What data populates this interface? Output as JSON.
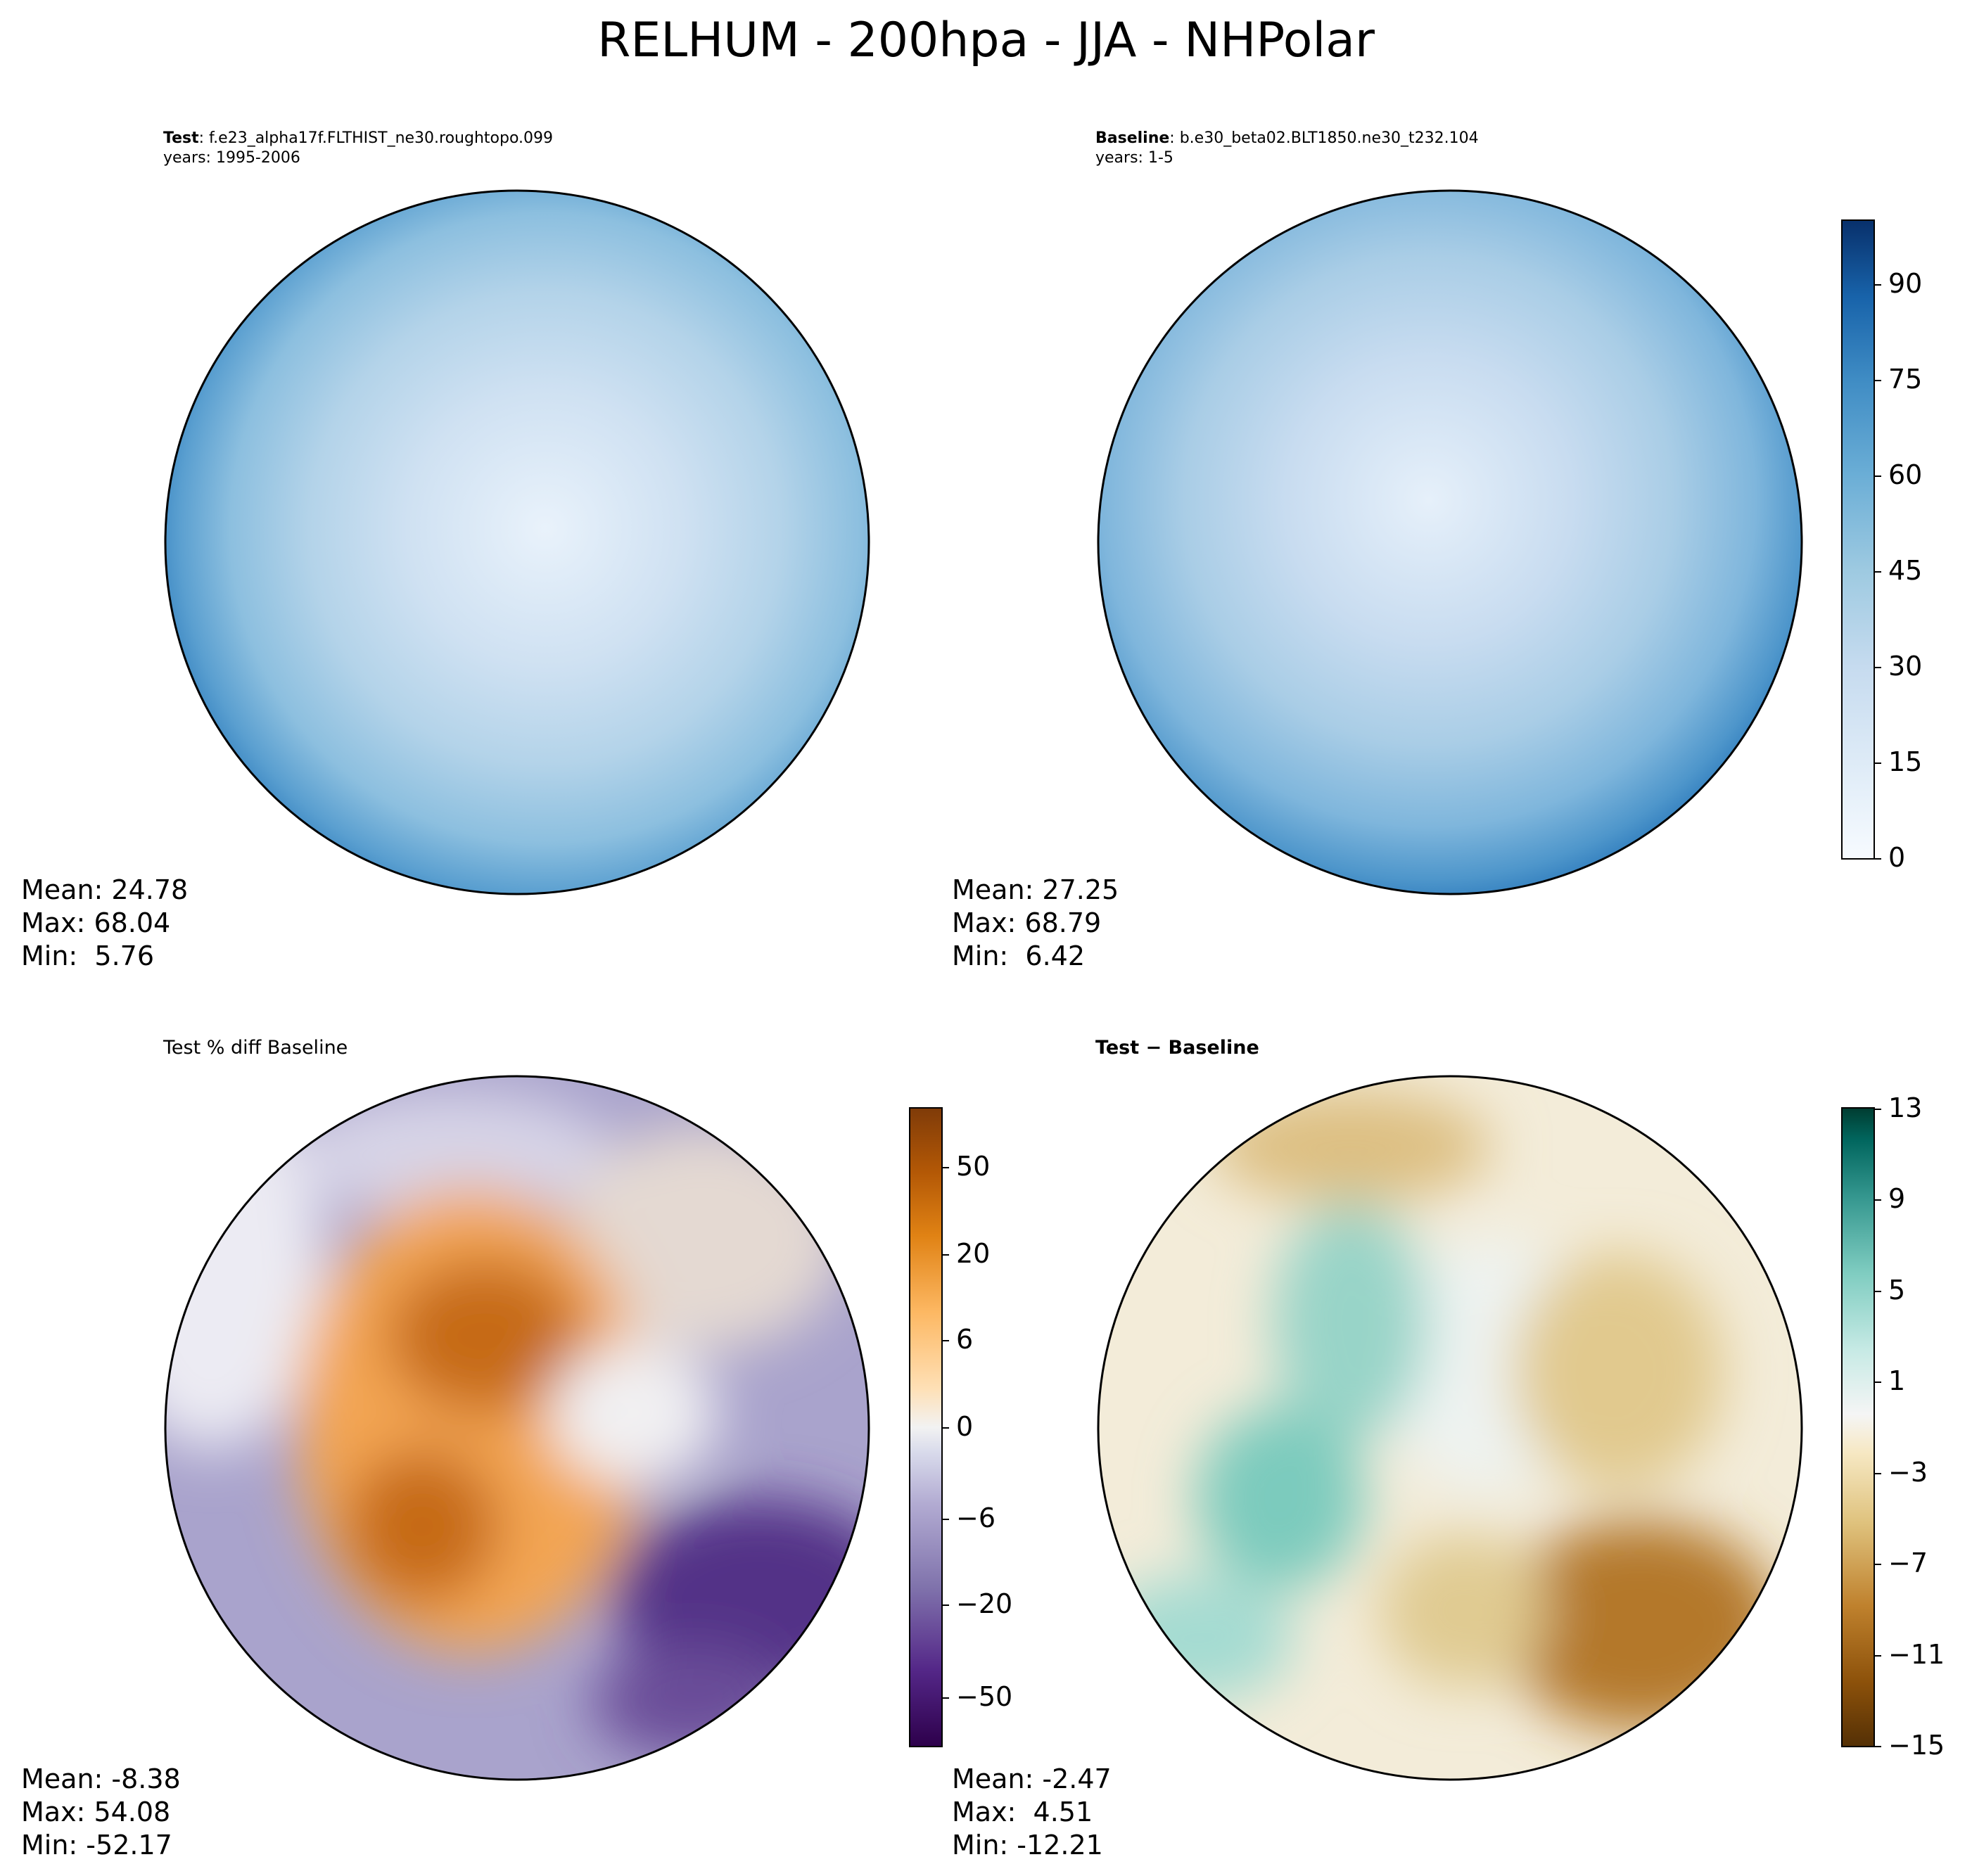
{
  "title": "RELHUM - 200hpa - JJA - NHPolar",
  "panels": [
    {
      "id": "test",
      "label_bold": "Test",
      "label_rest": ": f.e23_alpha17f.FLTHIST_ne30.roughtopo.099",
      "years": "years: 1995-2006",
      "stats": {
        "mean": "Mean: 24.78",
        "max": "Max: 68.04",
        "min": "Min:  5.76"
      }
    },
    {
      "id": "baseline",
      "label_bold": "Baseline",
      "label_rest": ": b.e30_beta02.BLT1850.ne30_t232.104",
      "years": "years: 1-5",
      "stats": {
        "mean": "Mean: 27.25",
        "max": "Max: 68.79",
        "min": "Min:  6.42"
      }
    },
    {
      "id": "pctdiff",
      "title": "Test % diff Baseline",
      "stats": {
        "mean": "Mean: -8.38",
        "max": "Max: 54.08",
        "min": "Min: -52.17"
      }
    },
    {
      "id": "diff",
      "title": "Test − Baseline",
      "stats": {
        "mean": "Mean: -2.47",
        "max": "Max:  4.51",
        "min": "Min: -12.21"
      }
    }
  ],
  "colorbars": {
    "main": {
      "colormap": "Blues",
      "ticks": [
        "0",
        "15",
        "30",
        "45",
        "60",
        "75",
        "90"
      ],
      "range": [
        0,
        100
      ],
      "colors": [
        "#f7fbff",
        "#deebf7",
        "#c6dbef",
        "#9ecae1",
        "#6baed6",
        "#4292c6",
        "#2171b5",
        "#08519c",
        "#08306b"
      ]
    },
    "pctdiff": {
      "colormap": "PuOr_r",
      "ticks": [
        "−50",
        "−20",
        "−6",
        "0",
        "6",
        "20",
        "50"
      ],
      "colors": [
        "#2d004b",
        "#542788",
        "#8073ac",
        "#b2abd2",
        "#d8daeb",
        "#f7f7f7",
        "#fee0b6",
        "#fdb863",
        "#e08214",
        "#b35806",
        "#7f3b08"
      ]
    },
    "diff": {
      "colormap": "BrBG",
      "ticks": [
        "13",
        "9",
        "5",
        "1",
        "−3",
        "−7",
        "−11",
        "−15"
      ],
      "range": [
        -15,
        13
      ],
      "colors": [
        "#543005",
        "#8c510a",
        "#bf812d",
        "#dfc27d",
        "#f6e8c3",
        "#f5f5f5",
        "#c7eae5",
        "#80cdc1",
        "#35978f",
        "#01665e",
        "#003c30"
      ]
    }
  }
}
